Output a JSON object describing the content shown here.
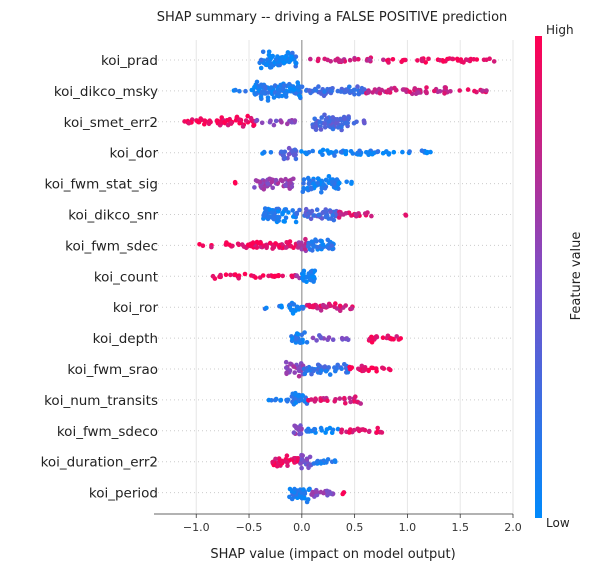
{
  "chart_data": {
    "type": "scatter",
    "subtype": "shap-beeswarm",
    "title": "SHAP summary -- driving a FALSE POSITIVE prediction",
    "xlabel": "SHAP value (impact on model output)",
    "xlim": [
      -1.4,
      2.0
    ],
    "xticks": [
      -1.0,
      -0.5,
      0.0,
      0.5,
      1.0,
      1.5,
      2.0
    ],
    "xtick_labels": [
      "−1.0",
      "−0.5",
      "0.0",
      "0.5",
      "1.0",
      "1.5",
      "2.0"
    ],
    "grid": true,
    "colorbar": {
      "label": "Feature value",
      "high_label": "High",
      "low_label": "Low",
      "low_color": "#008afb",
      "mid_color": "#7d4fc7",
      "high_color": "#ff0052"
    },
    "features": [
      {
        "name": "koi_prad",
        "segments": [
          {
            "x": [
              -0.4,
              -0.05
            ],
            "density": 2.4,
            "value": 0.1
          },
          {
            "x": [
              0.05,
              0.8
            ],
            "density": 0.35,
            "value": 0.8
          },
          {
            "x": [
              0.8,
              1.6
            ],
            "density": 0.45,
            "value": 0.92
          },
          {
            "x": [
              1.6,
              1.85
            ],
            "density": 0.15,
            "value": 0.95
          }
        ]
      },
      {
        "name": "koi_dikco_msky",
        "segments": [
          {
            "x": [
              -0.65,
              -0.45
            ],
            "density": 0.2,
            "value": 0.1
          },
          {
            "x": [
              -0.45,
              0.0
            ],
            "density": 2.4,
            "value": 0.12
          },
          {
            "x": [
              0.0,
              0.6
            ],
            "density": 1.0,
            "value": 0.25
          },
          {
            "x": [
              0.6,
              1.4
            ],
            "density": 0.7,
            "value": 0.8
          },
          {
            "x": [
              1.4,
              1.8
            ],
            "density": 0.2,
            "value": 0.85
          }
        ]
      },
      {
        "name": "koi_smet_err2",
        "segments": [
          {
            "x": [
              -1.22,
              -0.8
            ],
            "density": 0.5,
            "value": 0.95
          },
          {
            "x": [
              -0.8,
              -0.45
            ],
            "density": 1.2,
            "value": 0.95
          },
          {
            "x": [
              -0.45,
              -0.05
            ],
            "density": 0.45,
            "value": 0.55
          },
          {
            "x": [
              0.1,
              0.45
            ],
            "density": 2.2,
            "value": 0.3
          },
          {
            "x": [
              0.45,
              0.6
            ],
            "density": 0.35,
            "value": 0.3
          }
        ]
      },
      {
        "name": "koi_dor",
        "segments": [
          {
            "x": [
              -0.38,
              -0.25
            ],
            "density": 0.1,
            "value": 0.1
          },
          {
            "x": [
              -0.2,
              -0.05
            ],
            "density": 1.6,
            "value": 0.35
          },
          {
            "x": [
              -0.05,
              0.85
            ],
            "density": 0.55,
            "value": 0.08
          },
          {
            "x": [
              0.85,
              1.22
            ],
            "density": 0.2,
            "value": 0.08
          }
        ]
      },
      {
        "name": "koi_fwm_stat_sig",
        "segments": [
          {
            "x": [
              -0.65,
              -0.6
            ],
            "density": 0.1,
            "value": 0.95
          },
          {
            "x": [
              -0.45,
              -0.08
            ],
            "density": 1.5,
            "value": 0.6
          },
          {
            "x": [
              0.0,
              0.35
            ],
            "density": 2.0,
            "value": 0.1
          },
          {
            "x": [
              0.35,
              0.48
            ],
            "density": 0.3,
            "value": 0.1
          }
        ]
      },
      {
        "name": "koi_dikco_snr",
        "segments": [
          {
            "x": [
              -0.38,
              -0.05
            ],
            "density": 1.8,
            "value": 0.1
          },
          {
            "x": [
              -0.05,
              0.35
            ],
            "density": 1.2,
            "value": 0.3
          },
          {
            "x": [
              0.35,
              0.72
            ],
            "density": 0.6,
            "value": 0.85
          },
          {
            "x": [
              0.97,
              1.0
            ],
            "density": 0.1,
            "value": 0.95
          }
        ]
      },
      {
        "name": "koi_fwm_sdec",
        "segments": [
          {
            "x": [
              -0.97,
              -0.55
            ],
            "density": 0.35,
            "value": 0.95
          },
          {
            "x": [
              -0.55,
              -0.05
            ],
            "density": 1.0,
            "value": 0.9
          },
          {
            "x": [
              -0.05,
              0.05
            ],
            "density": 1.8,
            "value": 0.7
          },
          {
            "x": [
              0.05,
              0.3
            ],
            "density": 1.7,
            "value": 0.15
          }
        ]
      },
      {
        "name": "koi_count",
        "segments": [
          {
            "x": [
              -0.85,
              -0.05
            ],
            "density": 0.45,
            "value": 0.95
          },
          {
            "x": [
              -0.05,
              0.0
            ],
            "density": 0.45,
            "value": 0.55
          },
          {
            "x": [
              0.0,
              0.13
            ],
            "density": 2.6,
            "value": 0.05
          }
        ]
      },
      {
        "name": "koi_ror",
        "segments": [
          {
            "x": [
              -0.35,
              -0.18
            ],
            "density": 0.2,
            "value": 0.1
          },
          {
            "x": [
              -0.12,
              0.02
            ],
            "density": 1.6,
            "value": 0.1
          },
          {
            "x": [
              0.02,
              0.48
            ],
            "density": 0.8,
            "value": 0.85
          }
        ]
      },
      {
        "name": "koi_depth",
        "segments": [
          {
            "x": [
              -0.1,
              0.08
            ],
            "density": 1.5,
            "value": 0.12
          },
          {
            "x": [
              0.08,
              0.45
            ],
            "density": 0.4,
            "value": 0.45
          },
          {
            "x": [
              0.55,
              0.95
            ],
            "density": 0.6,
            "value": 0.92
          }
        ]
      },
      {
        "name": "koi_fwm_srao",
        "segments": [
          {
            "x": [
              -0.15,
              0.02
            ],
            "density": 1.8,
            "value": 0.6
          },
          {
            "x": [
              0.02,
              0.45
            ],
            "density": 1.2,
            "value": 0.2
          },
          {
            "x": [
              0.45,
              0.85
            ],
            "density": 0.6,
            "value": 0.92
          }
        ]
      },
      {
        "name": "koi_num_transits",
        "segments": [
          {
            "x": [
              -0.33,
              -0.1
            ],
            "density": 0.4,
            "value": 0.1
          },
          {
            "x": [
              -0.1,
              0.05
            ],
            "density": 1.9,
            "value": 0.15
          },
          {
            "x": [
              0.05,
              0.6
            ],
            "density": 0.6,
            "value": 0.85
          }
        ]
      },
      {
        "name": "koi_fwm_sdeco",
        "segments": [
          {
            "x": [
              -0.08,
              0.0
            ],
            "density": 1.8,
            "value": 0.55
          },
          {
            "x": [
              0.0,
              0.35
            ],
            "density": 0.5,
            "value": 0.08
          },
          {
            "x": [
              0.35,
              0.82
            ],
            "density": 0.5,
            "value": 0.9
          }
        ]
      },
      {
        "name": "koi_duration_err2",
        "segments": [
          {
            "x": [
              -0.28,
              -0.02
            ],
            "density": 1.4,
            "value": 0.92
          },
          {
            "x": [
              -0.02,
              0.1
            ],
            "density": 1.8,
            "value": 0.45
          },
          {
            "x": [
              0.1,
              0.33
            ],
            "density": 0.7,
            "value": 0.1
          }
        ]
      },
      {
        "name": "koi_period",
        "segments": [
          {
            "x": [
              -0.12,
              0.08
            ],
            "density": 2.0,
            "value": 0.12
          },
          {
            "x": [
              0.08,
              0.3
            ],
            "density": 1.0,
            "value": 0.55
          },
          {
            "x": [
              0.3,
              0.4
            ],
            "density": 0.3,
            "value": 0.9
          }
        ]
      }
    ]
  }
}
